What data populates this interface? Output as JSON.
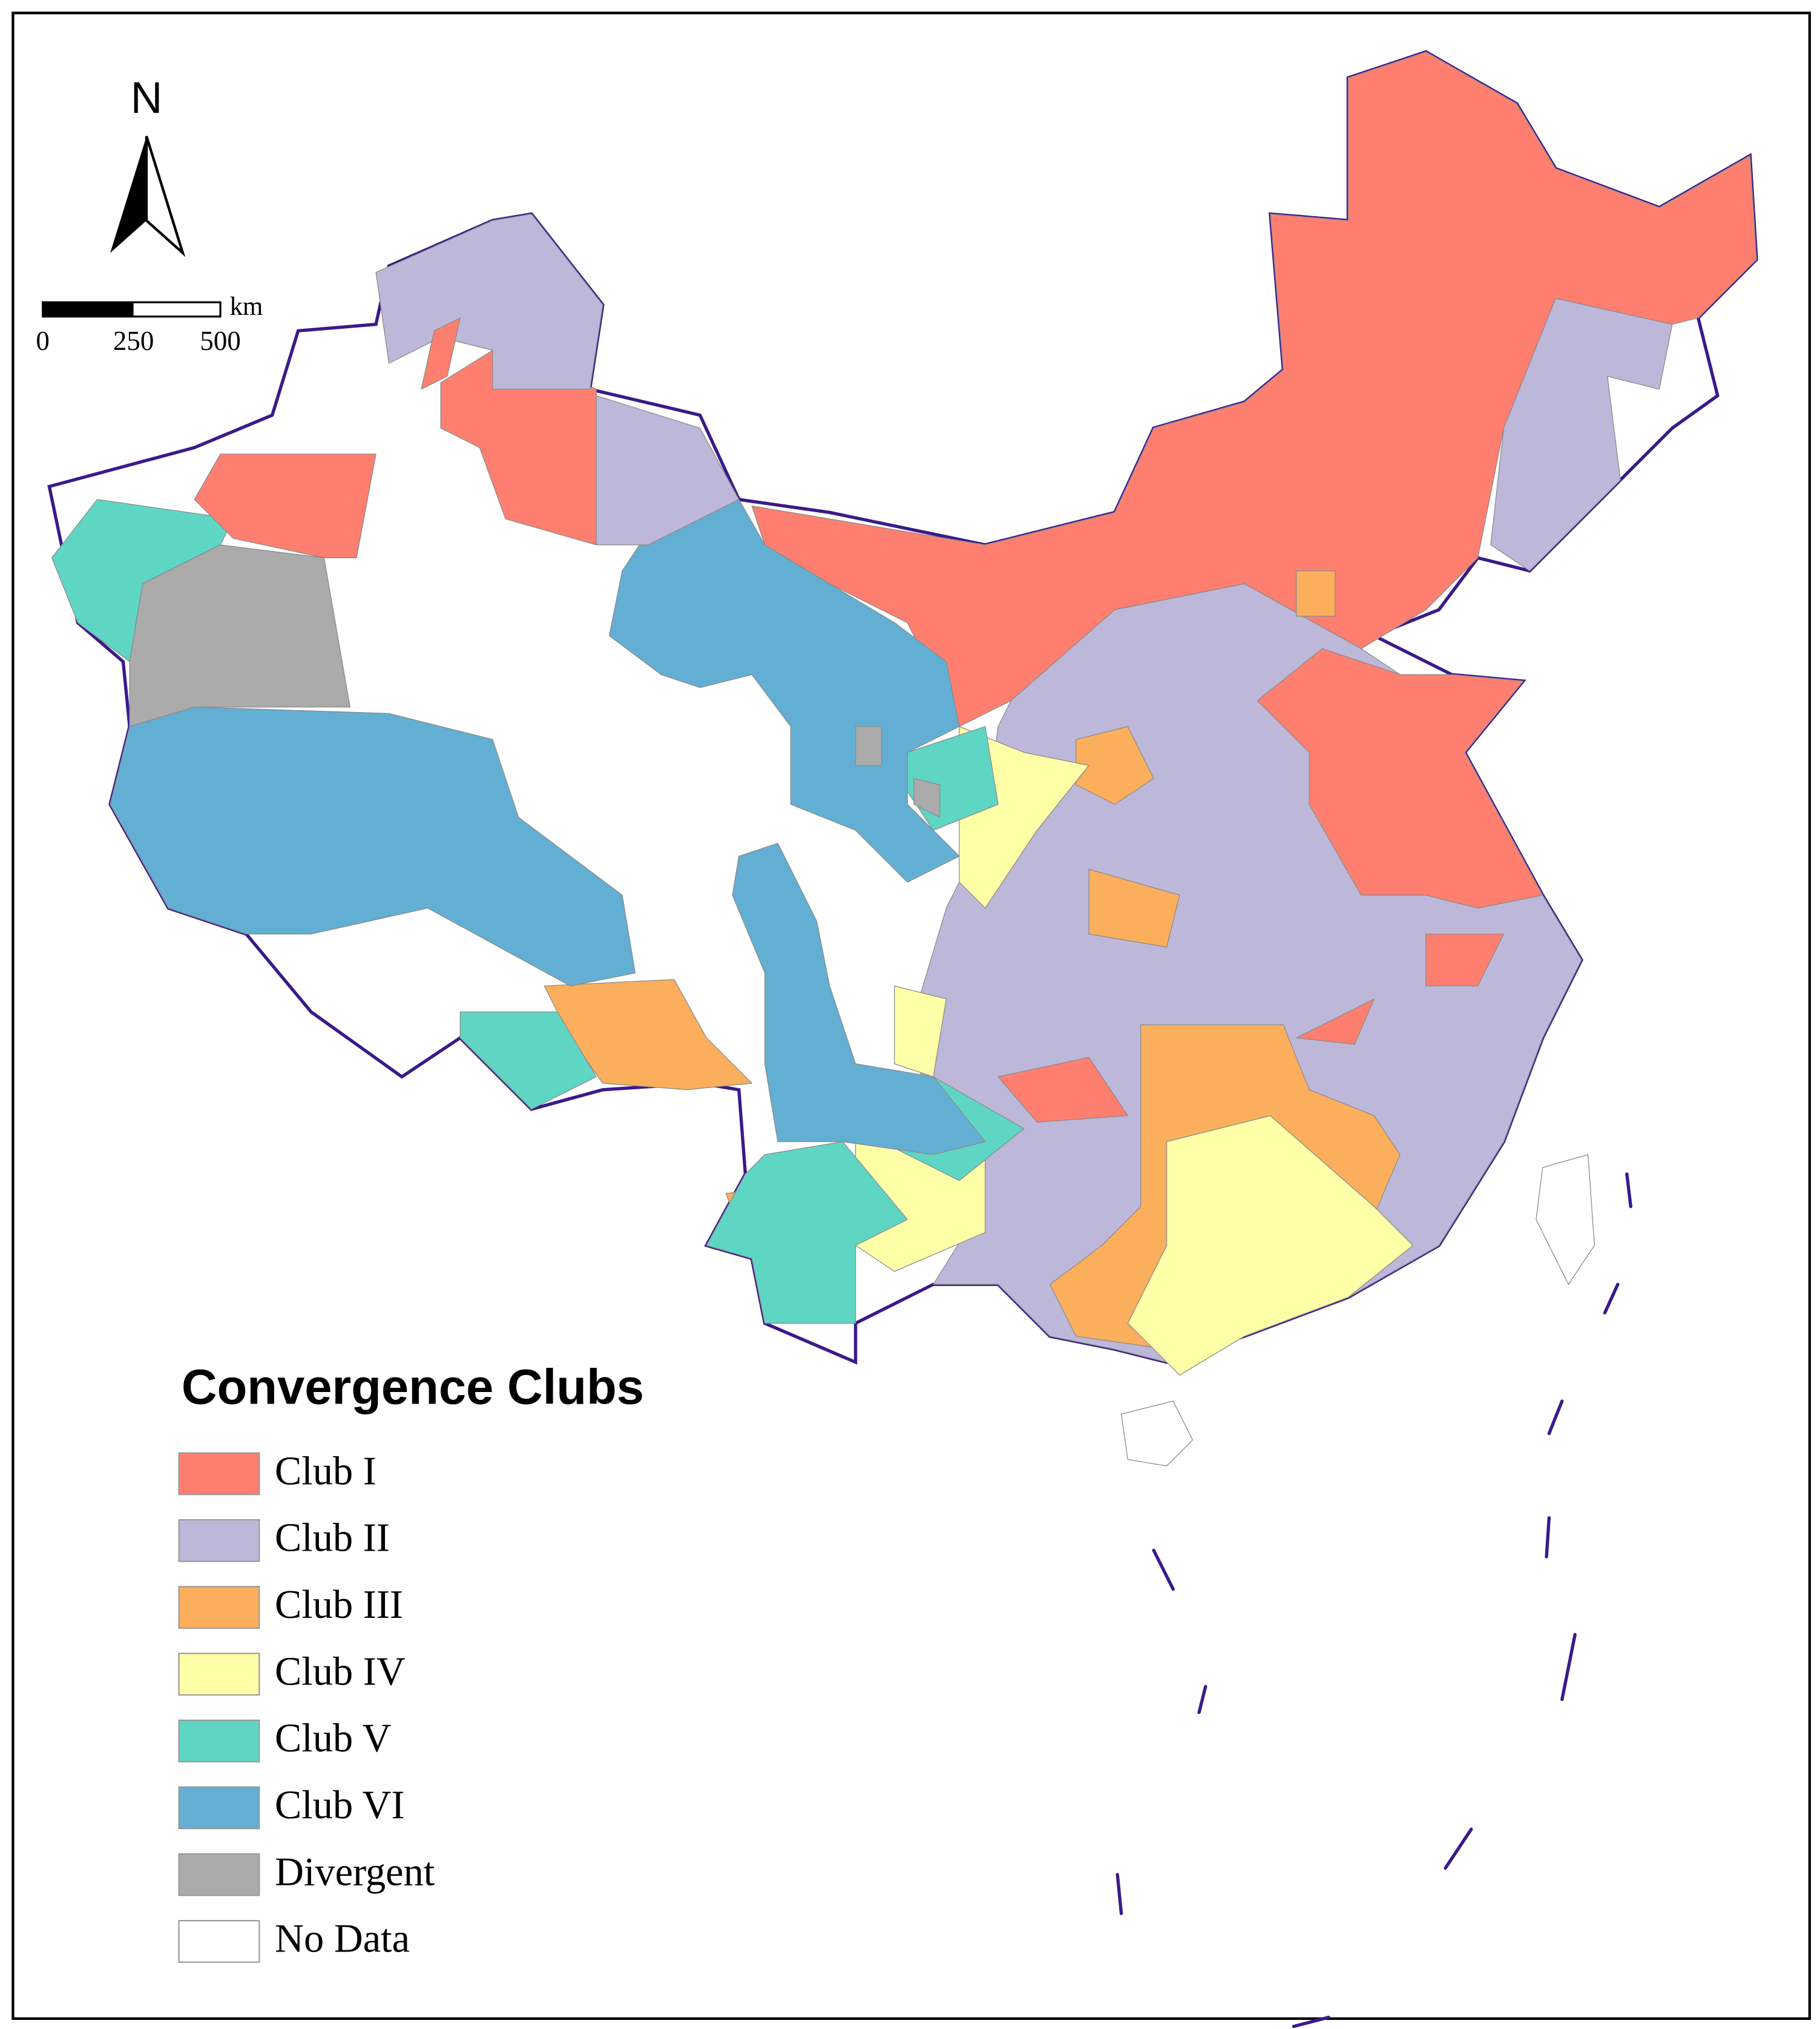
{
  "map": {
    "north_label": "N",
    "scale_bar": {
      "unit": "km",
      "labels": [
        "0",
        "250",
        "500"
      ]
    },
    "legend": {
      "title": "Convergence Clubs",
      "items": [
        {
          "name": "Club I",
          "color": "#fe7f70"
        },
        {
          "name": "Club II",
          "color": "#bdb8da"
        },
        {
          "name": "Club III",
          "color": "#fbae5c"
        },
        {
          "name": "Club IV",
          "color": "#ffffa8"
        },
        {
          "name": "Club V",
          "color": "#5fd6c4"
        },
        {
          "name": "Club VI",
          "color": "#62afd3"
        },
        {
          "name": "Divergent",
          "color": "#ababab"
        },
        {
          "name": "No Data",
          "color": "#ffffff"
        }
      ]
    }
  }
}
